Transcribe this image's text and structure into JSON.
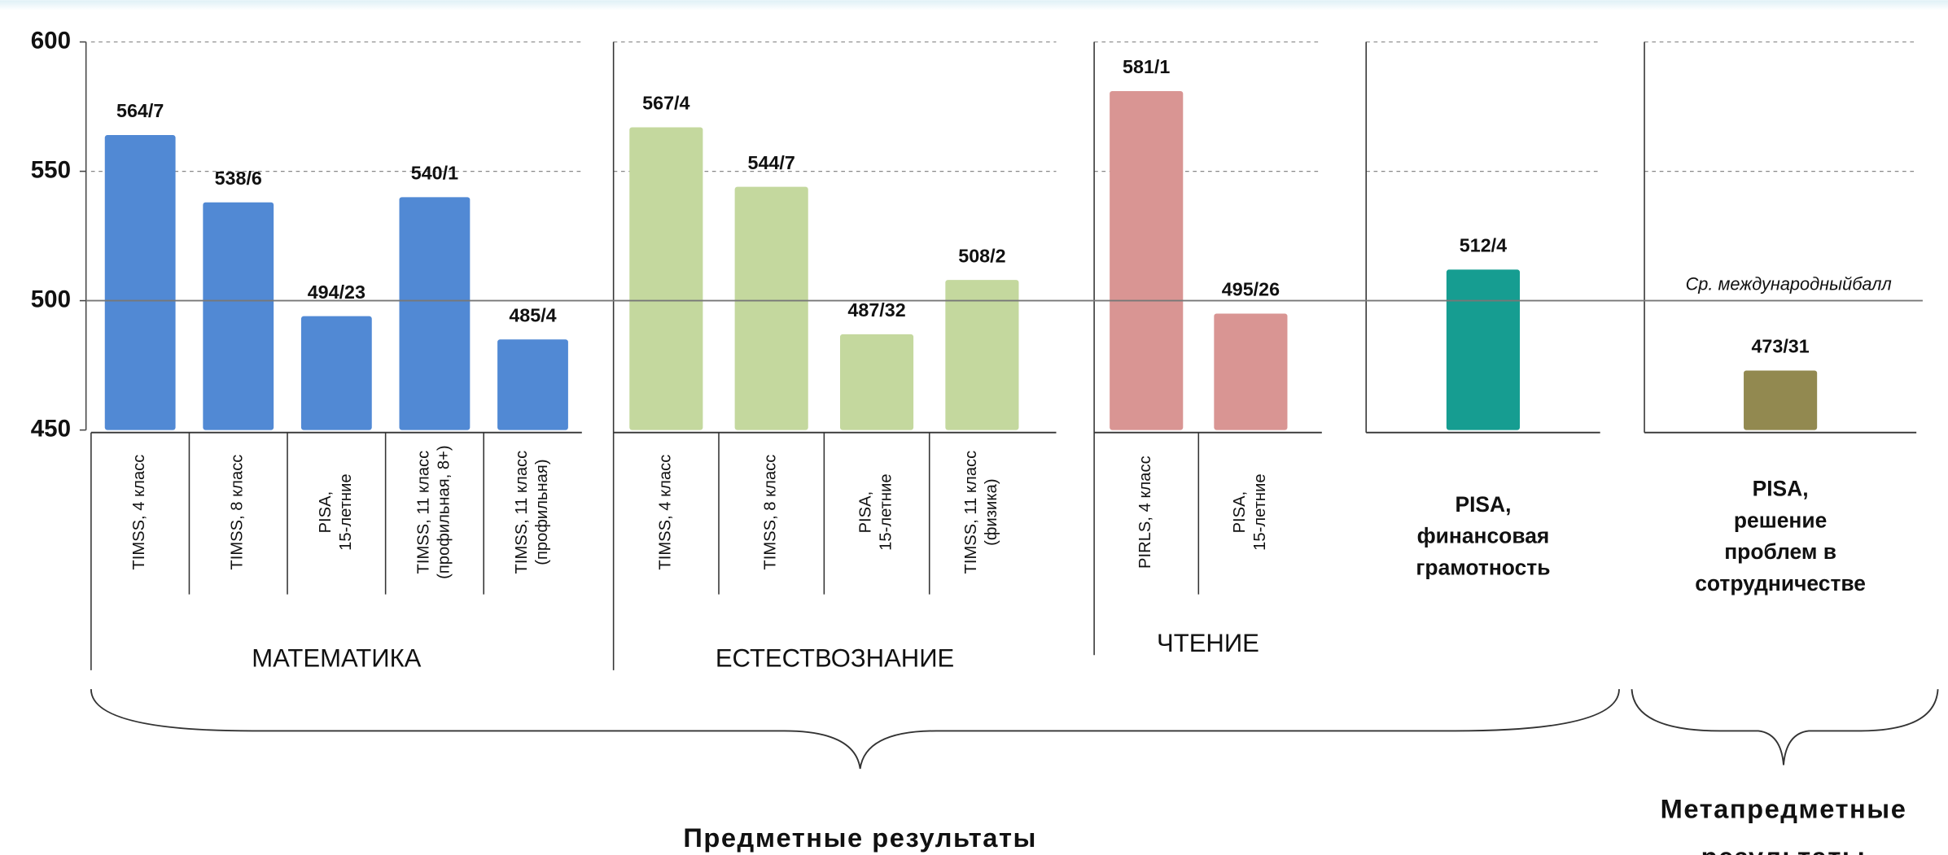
{
  "chart_data": {
    "type": "bar",
    "ylim": [
      450,
      600
    ],
    "yticks": [
      450,
      500,
      550,
      600
    ],
    "grid": true,
    "reference_line": {
      "value": 500,
      "label": "Ср. международныйбалл"
    },
    "groups": [
      {
        "name": "МАТЕМАТИКА",
        "color": "#5189d4",
        "categories": [
          "TIMSS, 4 класс",
          "TIMSS, 8 класс",
          "PISA,\n15-летние",
          "TIMSS, 11 класс\n(профильная, 8+)",
          "TIMSS, 11 класс\n(профильная)"
        ],
        "values": [
          564,
          538,
          494,
          540,
          485
        ],
        "value_labels": [
          "564/7",
          "538/6",
          "494/23",
          "540/1",
          "485/4"
        ]
      },
      {
        "name": "ЕСТЕСТВОЗНАНИЕ",
        "color": "#c4d89e",
        "categories": [
          "TIMSS, 4 класс",
          "TIMSS, 8 класс",
          "PISA,\n15-летние",
          "TIMSS, 11 класс\n(физика)"
        ],
        "values": [
          567,
          544,
          487,
          508
        ],
        "value_labels": [
          "567/4",
          "544/7",
          "487/32",
          "508/2"
        ]
      },
      {
        "name": "ЧТЕНИЕ",
        "color": "#d99593",
        "categories": [
          "PIRLS, 4 класс",
          "PISA,\n15-летние"
        ],
        "values": [
          581,
          495
        ],
        "value_labels": [
          "581/1",
          "495/26"
        ]
      },
      {
        "color": "#169d91",
        "categories": [
          "PISA,\nфинансовая\nграмотность"
        ],
        "values": [
          512
        ],
        "value_labels": [
          "512/4"
        ]
      },
      {
        "color": "#928950",
        "categories": [
          "PISA,\nрешение\nпроблем в\nсотрудничестве"
        ],
        "values": [
          473
        ],
        "value_labels": [
          "473/31"
        ]
      }
    ],
    "footer_labels": [
      "Предметные результаты",
      "Метапредметные\nрезультаты"
    ]
  }
}
